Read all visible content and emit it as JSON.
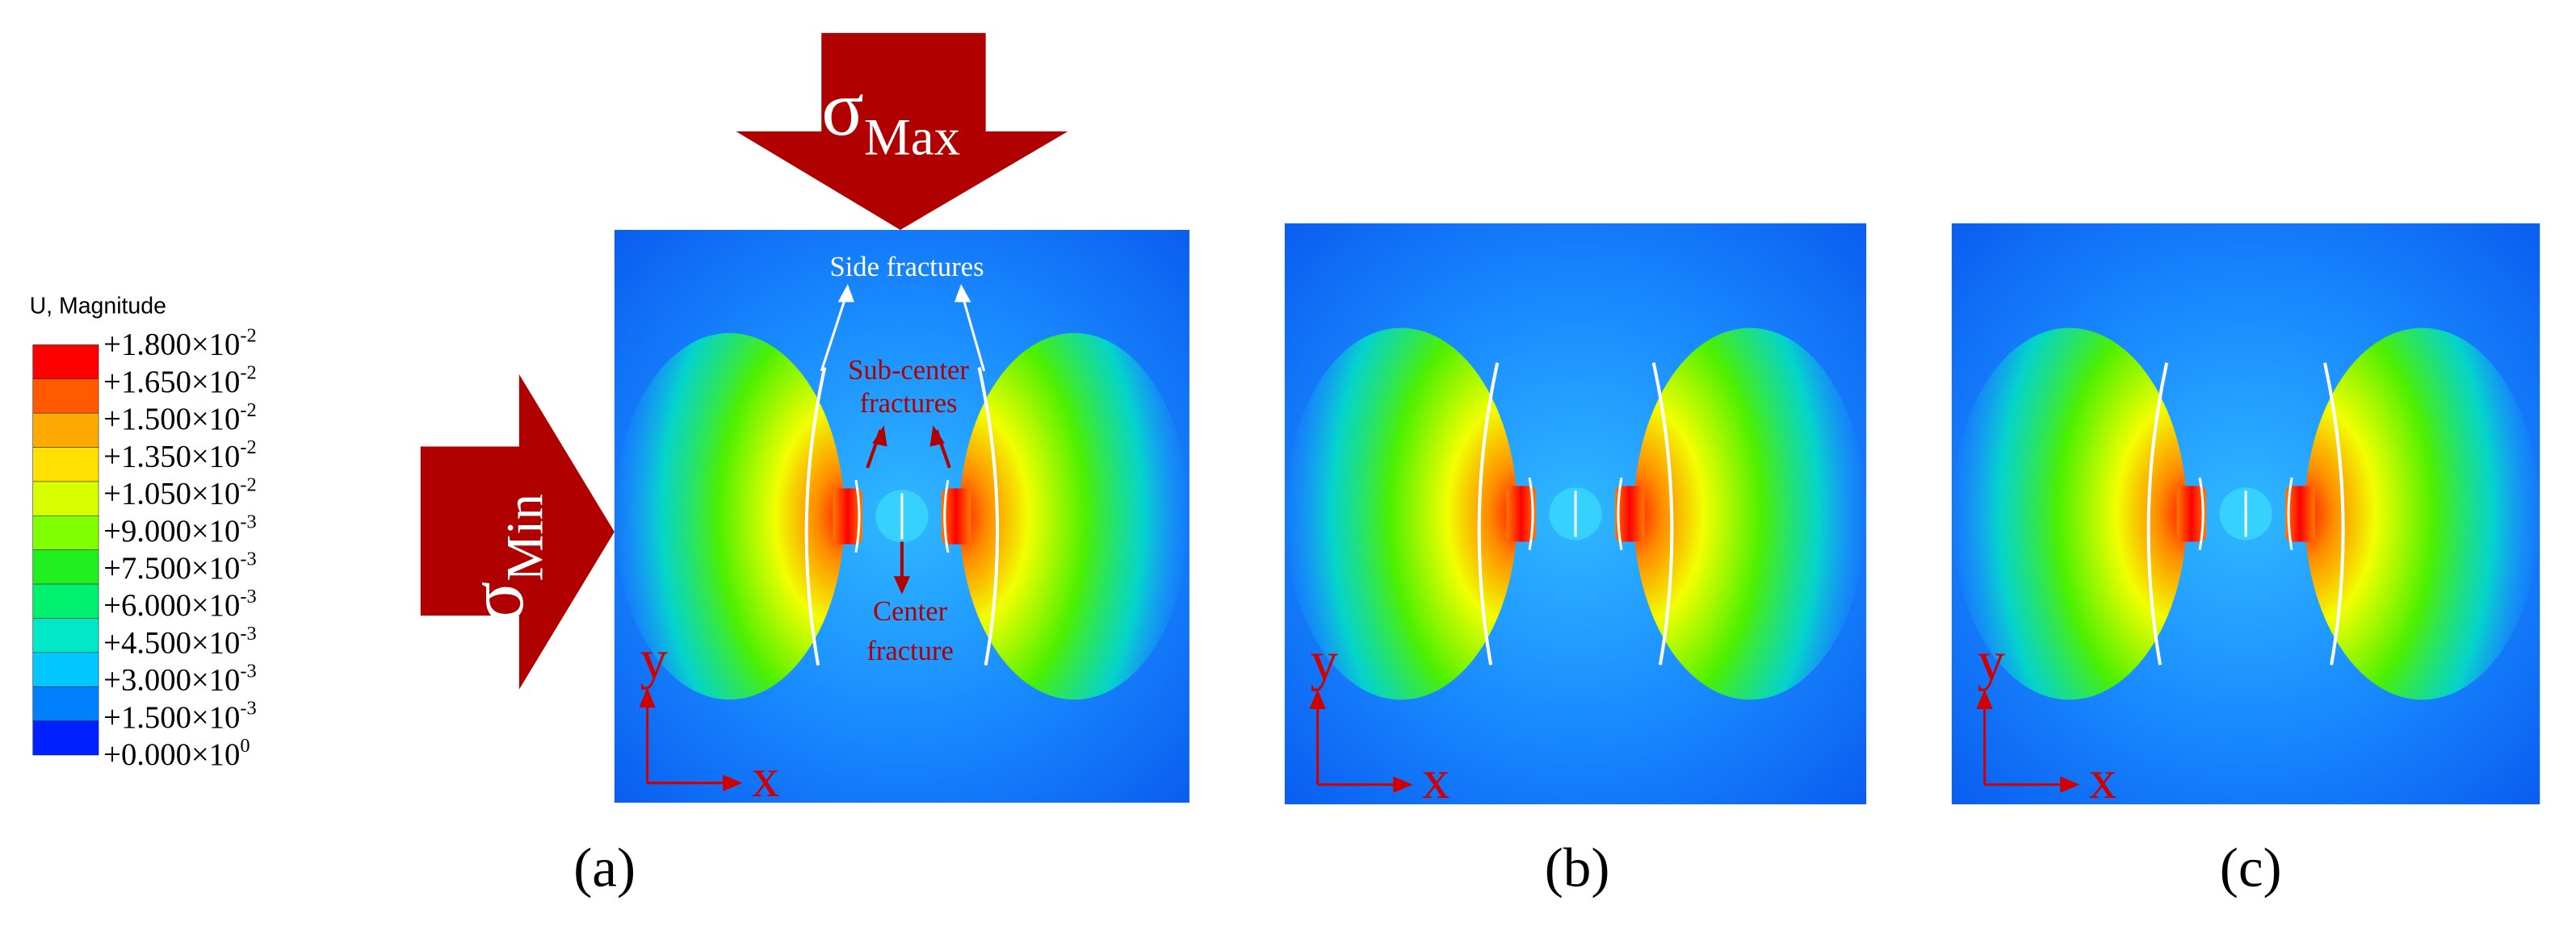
{
  "legend": {
    "title": "U, Magnitude",
    "labels": [
      {
        "mantissa": "+1.800×10",
        "exponent": "-2"
      },
      {
        "mantissa": "+1.650×10",
        "exponent": "-2"
      },
      {
        "mantissa": "+1.500×10",
        "exponent": "-2"
      },
      {
        "mantissa": "+1.350×10",
        "exponent": "-2"
      },
      {
        "mantissa": "+1.050×10",
        "exponent": "-2"
      },
      {
        "mantissa": "+9.000×10",
        "exponent": "-3"
      },
      {
        "mantissa": "+7.500×10",
        "exponent": "-3"
      },
      {
        "mantissa": "+6.000×10",
        "exponent": "-3"
      },
      {
        "mantissa": "+4.500×10",
        "exponent": "-3"
      },
      {
        "mantissa": "+3.000×10",
        "exponent": "-3"
      },
      {
        "mantissa": "+1.500×10",
        "exponent": "-3"
      },
      {
        "mantissa": "+0.000×10",
        "exponent": "0"
      }
    ]
  },
  "load_arrows": [
    {
      "symbol": "σ",
      "subscript": "Max"
    },
    {
      "symbol": "σ",
      "subscript": "Min"
    }
  ],
  "annotations": {
    "side_fractures": "Side fractures",
    "sub_center_fractures": [
      "Sub-center",
      "fractures"
    ],
    "center_fracture": [
      "Center",
      "fracture"
    ]
  },
  "axis_labels": {
    "y": "y",
    "x": "x"
  },
  "panels": [
    {
      "caption": "(a)"
    },
    {
      "caption": "(b)"
    },
    {
      "caption": "(c)"
    }
  ]
}
